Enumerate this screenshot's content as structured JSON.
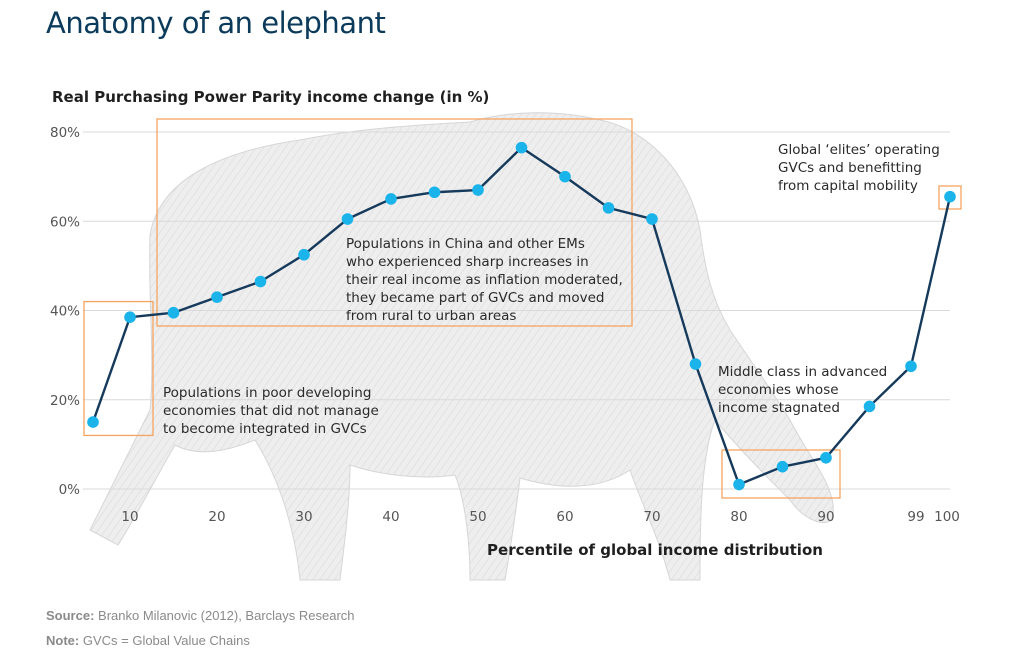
{
  "title": "Anatomy of an elephant",
  "source_label": "Source:",
  "source_text": "Branko Milanovic (2012), Barclays Research",
  "note_label": "Note:",
  "note_text": "GVCs = Global Value Chains",
  "colors": {
    "line": "#163a5c",
    "point": "#1ab3ea",
    "box": "#f4a460",
    "title": "#0b3a5b",
    "elephant": "#ececec"
  },
  "chart_data": {
    "type": "line",
    "ylabel": "Real Purchasing Power Parity income change (in %)",
    "xlabel": "Percentile of global income distribution",
    "ylim": [
      0,
      80
    ],
    "yticks": [
      0,
      20,
      40,
      60,
      80
    ],
    "ytick_labels": [
      "0%",
      "20%",
      "40%",
      "60%",
      "80%"
    ],
    "xticks": [
      10,
      20,
      30,
      40,
      50,
      60,
      70,
      80,
      90,
      99,
      100
    ],
    "grid": true,
    "series": [
      {
        "x": [
          5,
          10,
          15,
          20,
          25,
          30,
          35,
          40,
          45,
          50,
          55,
          60,
          65,
          70,
          75,
          80,
          85,
          90,
          95,
          99,
          100
        ],
        "values": [
          15,
          38.5,
          39.5,
          43,
          46.5,
          52.5,
          60.5,
          65,
          66.5,
          67,
          76.5,
          70,
          63,
          60.5,
          28,
          1,
          5,
          7,
          18.5,
          27.5,
          65.5
        ]
      }
    ],
    "annotations": [
      {
        "text": [
          "Populations in poor developing",
          "economies that did not manage",
          "to become integrated in GVCs"
        ],
        "x_range": [
          5,
          12
        ],
        "y_range": [
          12,
          42
        ]
      },
      {
        "text": [
          "Populations in China and other EMs",
          "who experienced sharp increases in",
          "their real income as inflation moderated,",
          "they became part of GVCs and moved",
          "from rural to urban areas"
        ],
        "x_range": [
          12.5,
          68
        ],
        "y_range": [
          36.5,
          83
        ]
      },
      {
        "text": [
          "Middle class in advanced",
          "economies whose",
          "income stagnated"
        ],
        "x_range": [
          78,
          91
        ],
        "y_range": [
          -2,
          9
        ]
      },
      {
        "text": [
          "Global ‘elites’ operating",
          "GVCs and benefitting",
          "from capital mobility"
        ],
        "x_range": [
          99.5,
          101
        ],
        "y_range": [
          63,
          68
        ]
      }
    ]
  }
}
